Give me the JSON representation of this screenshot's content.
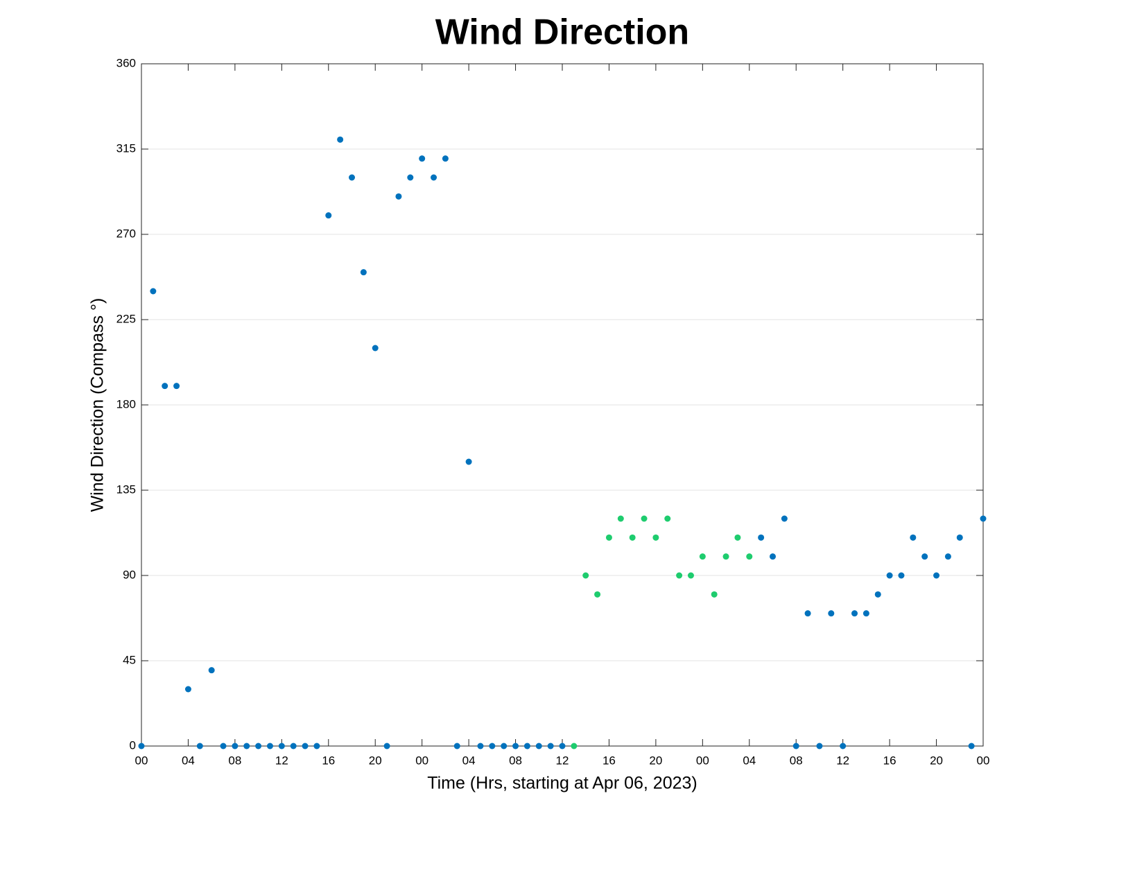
{
  "chart_data": {
    "type": "scatter",
    "title": "Wind Direction",
    "xlabel": "Time (Hrs, starting at Apr 06, 2023)",
    "ylabel": "Wind Direction (Compass °)",
    "xlim": [
      0,
      72
    ],
    "ylim": [
      0,
      360
    ],
    "xticks": [
      {
        "value": 0,
        "label": "00"
      },
      {
        "value": 4,
        "label": "04"
      },
      {
        "value": 8,
        "label": "08"
      },
      {
        "value": 12,
        "label": "12"
      },
      {
        "value": 16,
        "label": "16"
      },
      {
        "value": 20,
        "label": "20"
      },
      {
        "value": 24,
        "label": "00"
      },
      {
        "value": 28,
        "label": "04"
      },
      {
        "value": 32,
        "label": "08"
      },
      {
        "value": 36,
        "label": "12"
      },
      {
        "value": 40,
        "label": "16"
      },
      {
        "value": 44,
        "label": "20"
      },
      {
        "value": 48,
        "label": "00"
      },
      {
        "value": 52,
        "label": "04"
      },
      {
        "value": 56,
        "label": "08"
      },
      {
        "value": 60,
        "label": "12"
      },
      {
        "value": 64,
        "label": "16"
      },
      {
        "value": 68,
        "label": "20"
      },
      {
        "value": 72,
        "label": "00"
      }
    ],
    "yticks": [
      0,
      45,
      90,
      135,
      180,
      225,
      270,
      315,
      360
    ],
    "grid": true,
    "series": [
      {
        "color": "#0072bd",
        "x": [
          0,
          1,
          2,
          3,
          4,
          5,
          6,
          7,
          8,
          9,
          10,
          11,
          12,
          13,
          14,
          15,
          16,
          17,
          18,
          19,
          20,
          21,
          22,
          23,
          24,
          25,
          26,
          27,
          28,
          29,
          30,
          31,
          32,
          33,
          34,
          35,
          36,
          53,
          54,
          55,
          56,
          57,
          58,
          59,
          60,
          61,
          62,
          63,
          64,
          65,
          66,
          67,
          68,
          69,
          70,
          71,
          72
        ],
        "values": [
          0,
          240,
          190,
          190,
          30,
          0,
          40,
          0,
          0,
          0,
          0,
          0,
          0,
          0,
          0,
          0,
          280,
          320,
          300,
          250,
          210,
          0,
          290,
          300,
          310,
          300,
          310,
          0,
          150,
          0,
          0,
          0,
          0,
          0,
          0,
          0,
          0,
          110,
          100,
          120,
          0,
          70,
          0,
          70,
          0,
          70,
          70,
          80,
          90,
          90,
          110,
          100,
          90,
          100,
          110,
          0,
          120
        ]
      },
      {
        "color": "#1ecc6e",
        "x": [
          37,
          38,
          39,
          40,
          41,
          42,
          43,
          44,
          45,
          46,
          47,
          48,
          49,
          50,
          51,
          52
        ],
        "values": [
          0,
          90,
          80,
          110,
          120,
          110,
          120,
          110,
          120,
          90,
          90,
          100,
          80,
          100,
          110,
          100
        ]
      }
    ]
  }
}
